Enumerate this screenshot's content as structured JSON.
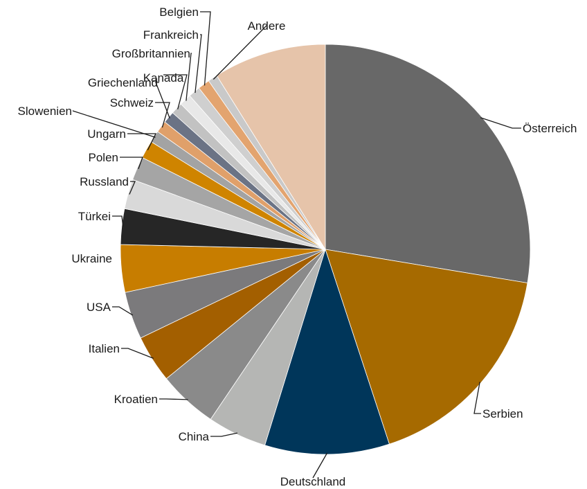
{
  "chart_data": {
    "type": "pie",
    "title": "",
    "start_angle": 0,
    "direction": "clockwise",
    "slices": [
      {
        "label": "Österreich",
        "value": 29.5,
        "color": "#686868"
      },
      {
        "label": "Serbien",
        "value": 18.5,
        "color": "#a66a00"
      },
      {
        "label": "Deutschland",
        "value": 10.5,
        "color": "#00365a"
      },
      {
        "label": "China",
        "value": 5.0,
        "color": "#b5b6b4"
      },
      {
        "label": "Kroatien",
        "value": 5.0,
        "color": "#8a8a8a"
      },
      {
        "label": "Italien",
        "value": 4.0,
        "color": "#a35f00"
      },
      {
        "label": "USA",
        "value": 4.0,
        "color": "#7b7a7c"
      },
      {
        "label": "Ukraine",
        "value": 4.0,
        "color": "#c77d00"
      },
      {
        "label": "Türkei",
        "value": 3.0,
        "color": "#262626"
      },
      {
        "label": "Russland",
        "value": 2.5,
        "color": "#d9d9d9"
      },
      {
        "label": "Polen",
        "value": 2.0,
        "color": "#a5a5a5"
      },
      {
        "label": "Ungarn",
        "value": 1.5,
        "color": "#cf8400"
      },
      {
        "label": "Slowenien",
        "value": 1.0,
        "color": "#a3a3a3"
      },
      {
        "label": "Schweiz",
        "value": 1.0,
        "color": "#e0a06a"
      },
      {
        "label": "Griechenland",
        "value": 1.0,
        "color": "#6b7385"
      },
      {
        "label": "Kanada",
        "value": 1.0,
        "color": "#c2c2c2"
      },
      {
        "label": "Großbritannien",
        "value": 1.0,
        "color": "#e8e8e8"
      },
      {
        "label": "Frankreich",
        "value": 1.0,
        "color": "#cfcfcf"
      },
      {
        "label": "Belgien",
        "value": 1.0,
        "color": "#e3a46f"
      },
      {
        "label": "Andere",
        "value": 0.8,
        "color": "#c9c9c9"
      },
      {
        "label": "",
        "value": 9.5,
        "color": "#e6c4aa"
      }
    ],
    "label_order_note": ""
  }
}
